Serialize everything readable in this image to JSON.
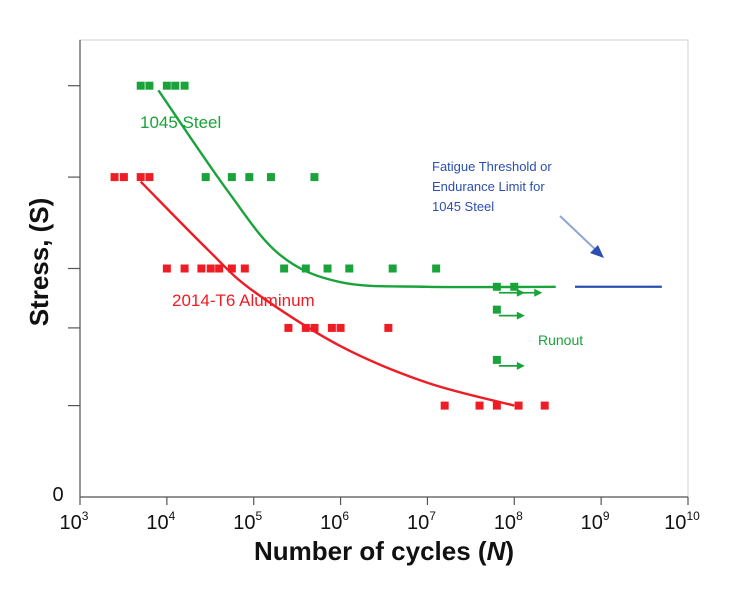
{
  "chart_data": {
    "type": "scatter",
    "xlabel": "Number of cycles (N)",
    "xlabel_main": "Number of cycles (",
    "xlabel_var": "N",
    "xlabel_close": ")",
    "ylabel": "Stress, (S)",
    "x_scale": "log",
    "xlim": [
      1000,
      10000000000
    ],
    "ylim": [
      0,
      5
    ],
    "grid": false,
    "x_tick_exponents": [
      "3",
      "4",
      "5",
      "6",
      "7",
      "8",
      "9",
      "10"
    ],
    "x_tick_base": "10",
    "y_zero_label": "0",
    "colors": {
      "steel": "#1aa33a",
      "aluminum": "#ee1c24",
      "threshold": "#2a4fb0"
    },
    "series": [
      {
        "name": "1045 Steel",
        "points": [
          [
            5000,
            4.5
          ],
          [
            6300,
            4.5
          ],
          [
            10000,
            4.5
          ],
          [
            12500,
            4.5
          ],
          [
            16000,
            4.5
          ],
          [
            28000,
            3.5
          ],
          [
            56000,
            3.5
          ],
          [
            89000,
            3.5
          ],
          [
            158000,
            3.5
          ],
          [
            500000,
            3.5
          ],
          [
            224000,
            2.5
          ],
          [
            398000,
            2.5
          ],
          [
            708000,
            2.5
          ],
          [
            1260000,
            2.5
          ],
          [
            3980000,
            2.5
          ],
          [
            12600000,
            2.5
          ]
        ],
        "runouts": [
          [
            63000000,
            2.3
          ],
          [
            100000000,
            2.3
          ],
          [
            63000000,
            2.05
          ],
          [
            63000000,
            1.5
          ]
        ],
        "fit": [
          [
            8000,
            4.45
          ],
          [
            50000,
            3.35
          ],
          [
            200000,
            2.65
          ],
          [
            1000000,
            2.35
          ],
          [
            10000000,
            2.3
          ],
          [
            300000000,
            2.3
          ]
        ]
      },
      {
        "name": "2014-T6 Aluminum",
        "points": [
          [
            2500,
            3.5
          ],
          [
            3200,
            3.5
          ],
          [
            5000,
            3.5
          ],
          [
            6300,
            3.5
          ],
          [
            10000,
            2.5
          ],
          [
            16000,
            2.5
          ],
          [
            25000,
            2.5
          ],
          [
            32000,
            2.5
          ],
          [
            40000,
            2.5
          ],
          [
            56000,
            2.5
          ],
          [
            79000,
            2.5
          ],
          [
            251000,
            1.85
          ],
          [
            398000,
            1.85
          ],
          [
            501000,
            1.85
          ],
          [
            794000,
            1.85
          ],
          [
            1000000,
            1.85
          ],
          [
            3550000,
            1.85
          ],
          [
            15800000,
            1.0
          ],
          [
            39800000,
            1.0
          ],
          [
            63000000,
            1.0
          ],
          [
            112000000,
            1.0
          ],
          [
            224000000,
            1.0
          ]
        ],
        "fit": [
          [
            5000,
            3.45
          ],
          [
            30000,
            2.7
          ],
          [
            100000,
            2.25
          ],
          [
            1000000,
            1.65
          ],
          [
            10000000,
            1.25
          ],
          [
            100000000,
            1.0
          ]
        ]
      }
    ],
    "threshold_line": {
      "x_start": 500000000,
      "x_end": 5000000000,
      "y": 2.3
    },
    "annotations": {
      "steel_label": "1045 Steel",
      "aluminum_label": "2014-T6 Aluminum",
      "runout_label": "Runout",
      "threshold_lines": [
        "Fatigue Threshold or",
        "Endurance Limit for",
        "1045 Steel"
      ]
    }
  }
}
